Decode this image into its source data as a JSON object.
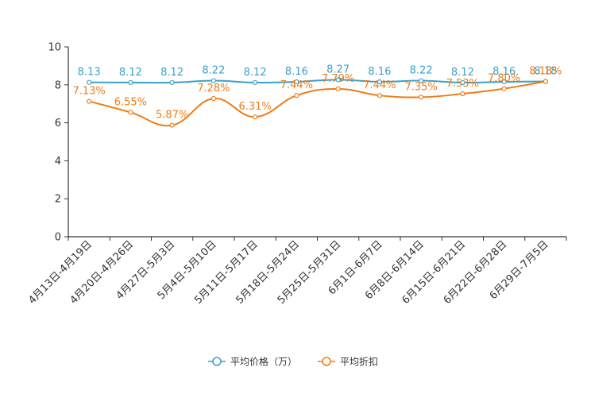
{
  "chart_data": {
    "type": "line",
    "title": "",
    "xlabel": "",
    "ylabel": "",
    "ylim": [
      0,
      10
    ],
    "yticks": [
      "0",
      "2",
      "4",
      "6",
      "8",
      "10"
    ],
    "categories": [
      "4月13日-4月19日",
      "4月20日-4月26日",
      "4月27日-5月3日",
      "5月4日-5月10日",
      "5月11日-5月17日",
      "5月18日-5月24日",
      "5月25日-5月31日",
      "6月1日-6月7日",
      "6月8日-6月14日",
      "6月15日-6月21日",
      "6月22日-6月28日",
      "6月29日-7月5日"
    ],
    "series": [
      {
        "name": "平均价格（万）",
        "color": "#3ba0c9",
        "values": [
          8.13,
          8.12,
          8.12,
          8.22,
          8.12,
          8.16,
          8.27,
          8.16,
          8.22,
          8.12,
          8.16,
          8.18
        ],
        "labels": [
          "8.13",
          "8.12",
          "8.12",
          "8.22",
          "8.12",
          "8.16",
          "8.27",
          "8.16",
          "8.22",
          "8.12",
          "8.16",
          "8.18"
        ]
      },
      {
        "name": "平均折扣",
        "color": "#f07c16",
        "values": [
          7.13,
          6.55,
          5.87,
          7.28,
          6.31,
          7.44,
          7.79,
          7.44,
          7.35,
          7.53,
          7.8,
          8.18
        ],
        "labels": [
          "7.13%",
          "6.55%",
          "5.87%",
          "7.28%",
          "6.31%",
          "7.44%",
          "7.79%",
          "7.44%",
          "7.35%",
          "7.53%",
          "7.80%",
          "8.18%"
        ]
      }
    ],
    "legend": "bottom-center",
    "grid": false
  }
}
